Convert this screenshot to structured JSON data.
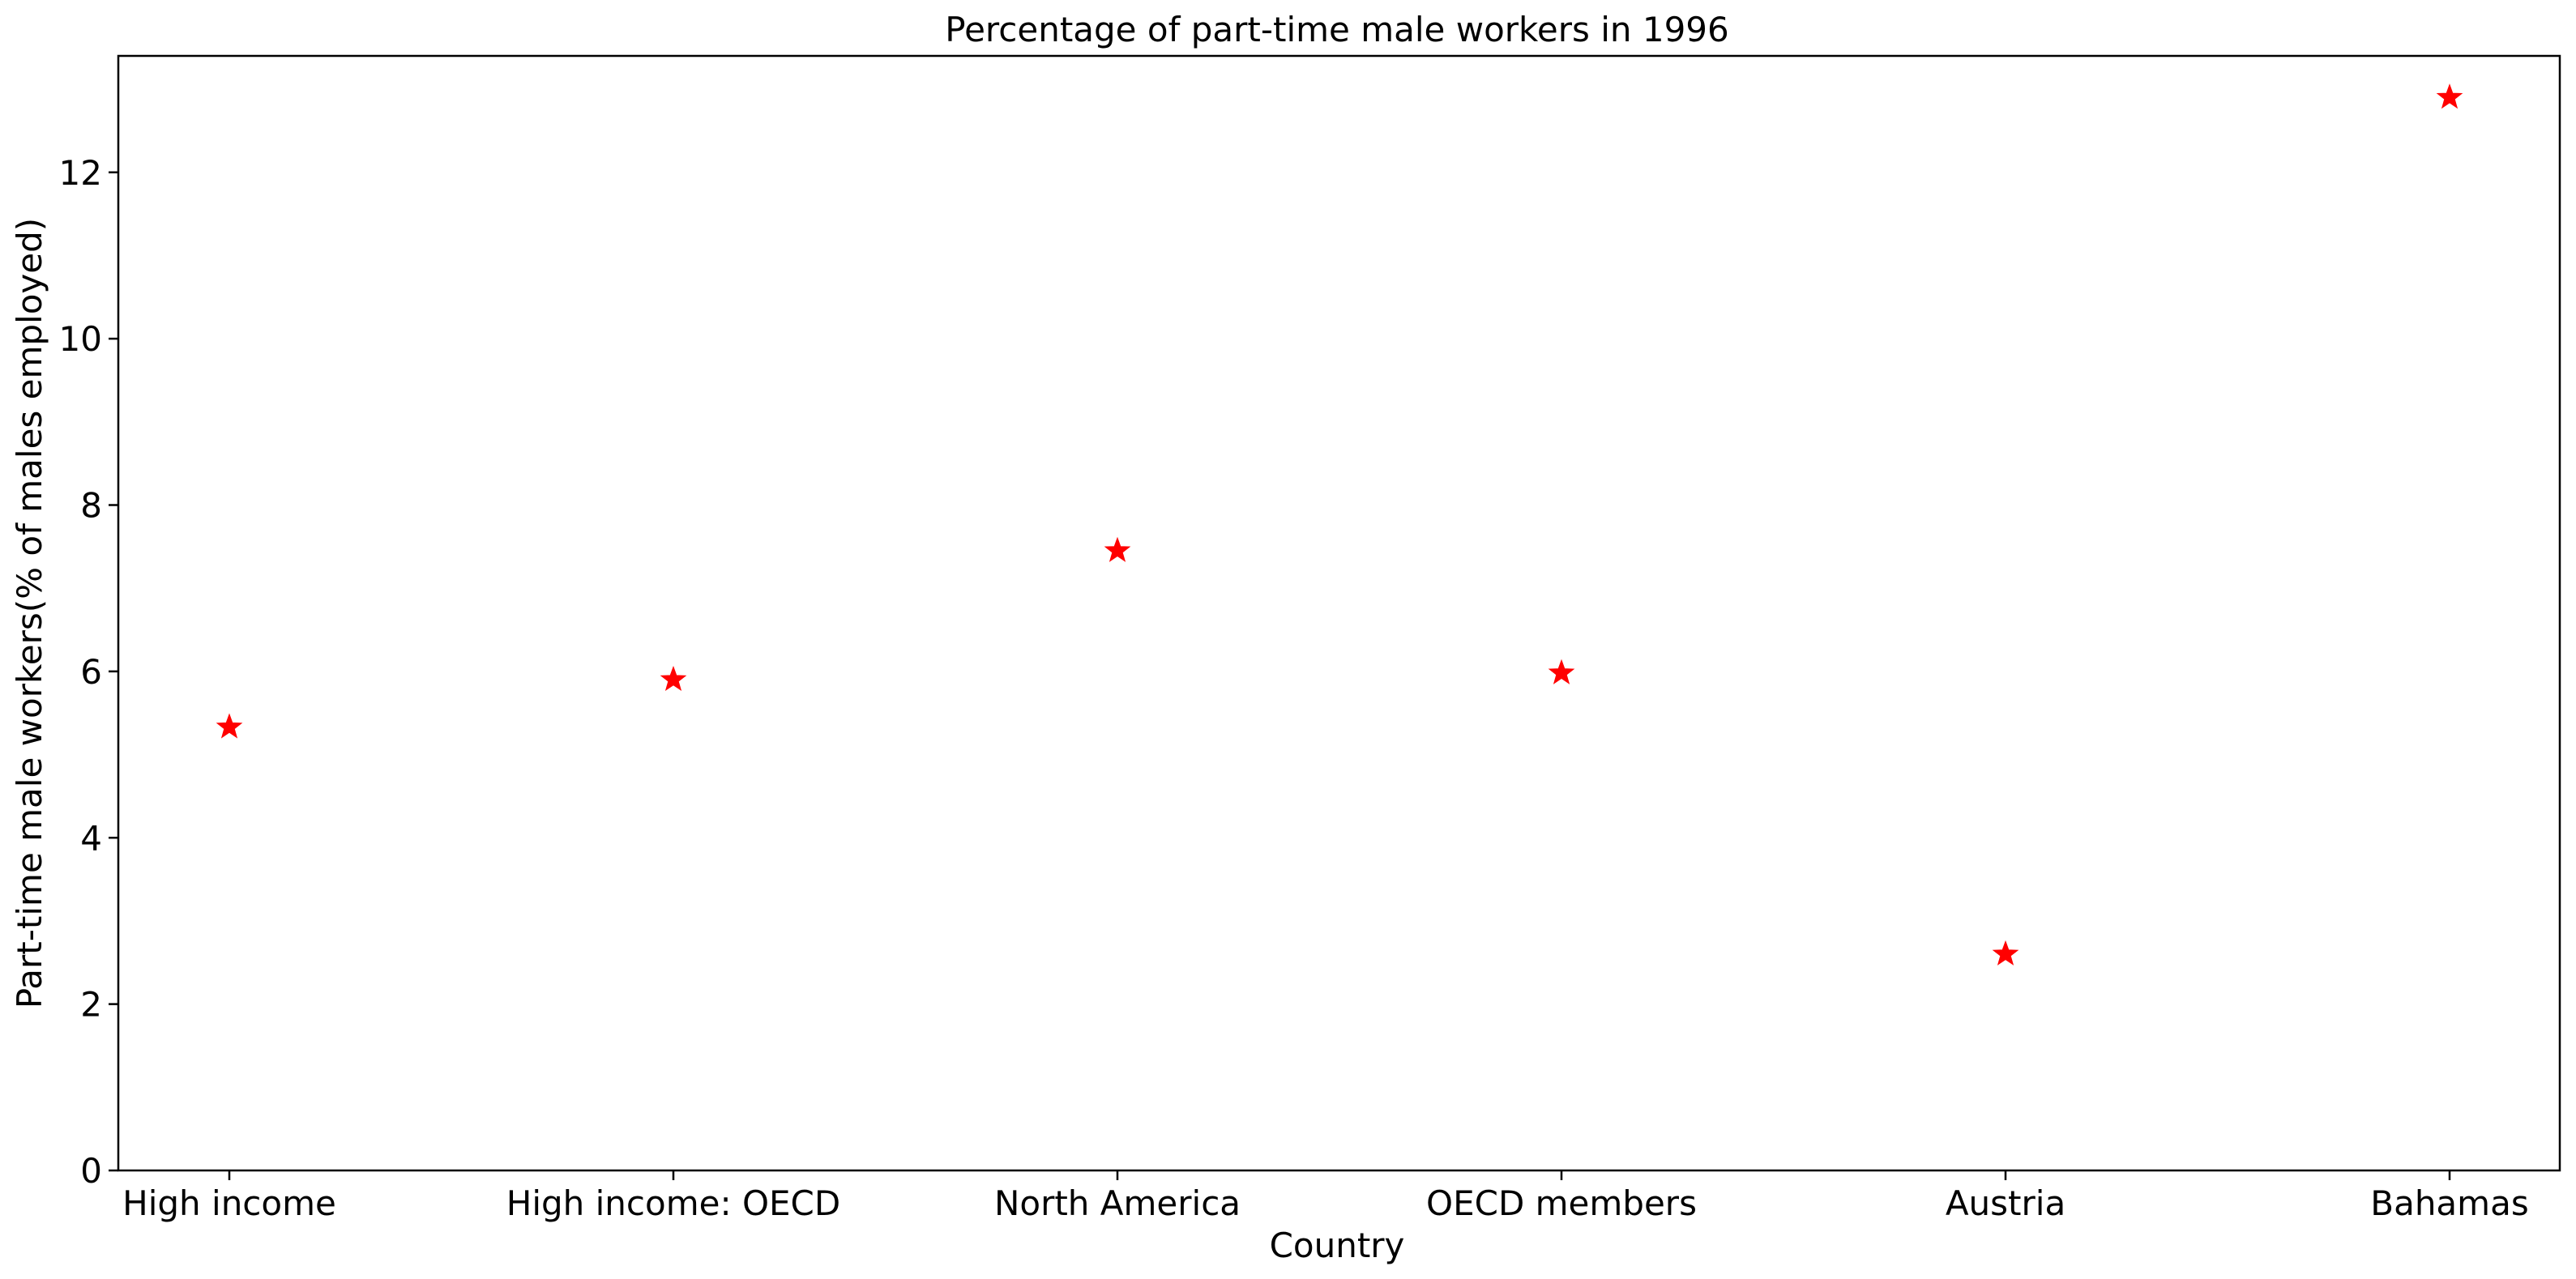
{
  "chart_data": {
    "type": "scatter",
    "title": "Percentage of part-time male workers in 1996",
    "xlabel": "Country",
    "ylabel": "Part-time male workers(% of males employed)",
    "categories": [
      "High income",
      "High income: OECD",
      "North America",
      "OECD members",
      "Austria",
      "Bahamas"
    ],
    "series": [
      {
        "values": [
          5.33,
          5.9,
          7.45,
          5.98,
          2.6,
          12.9
        ],
        "color": "#ff0000",
        "marker": "star"
      }
    ],
    "ylim": [
      0,
      13.4
    ],
    "yticks": [
      0,
      2,
      4,
      6,
      8,
      10,
      12
    ],
    "grid": false,
    "legend": "none"
  }
}
